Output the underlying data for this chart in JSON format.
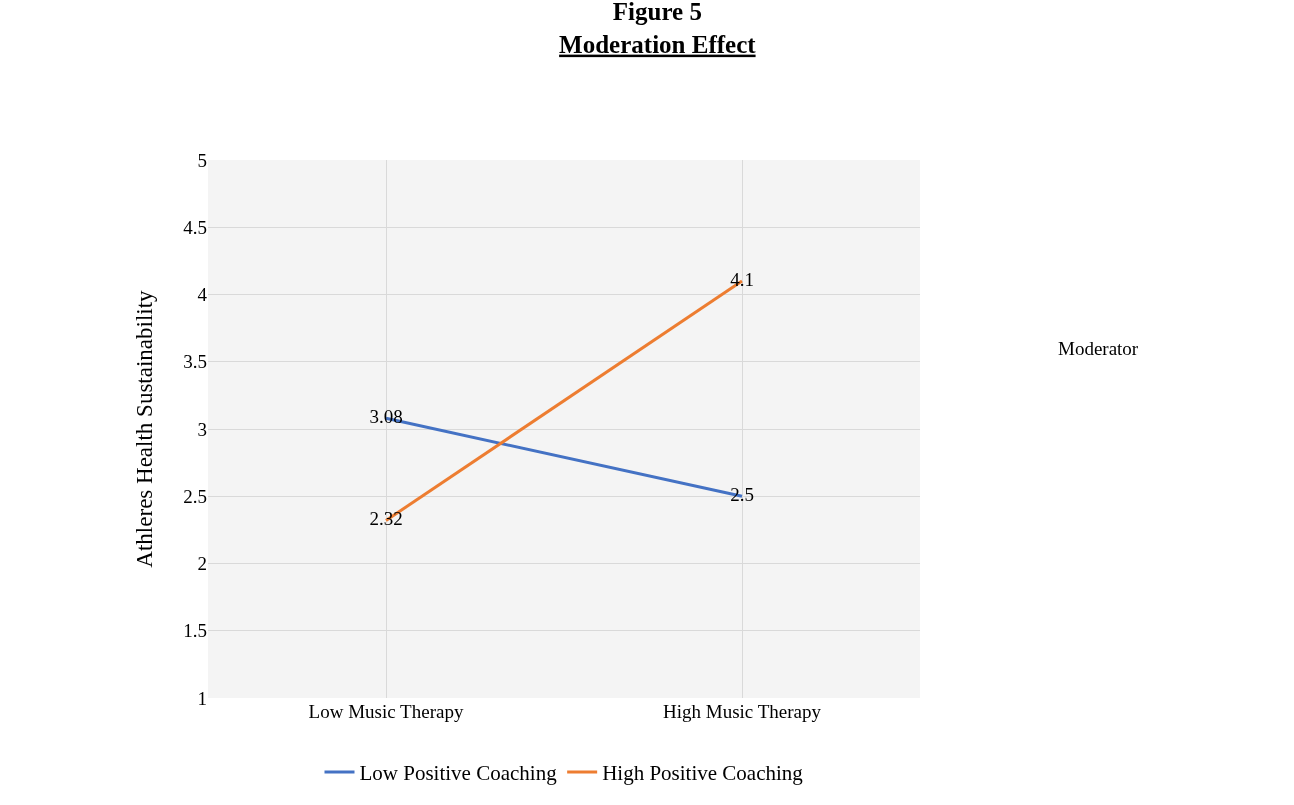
{
  "chart_data": {
    "type": "line",
    "title": "Figure 5",
    "subtitle": "Moderation Effect",
    "ylabel": "Athleres Health Sustainability",
    "categories": [
      "Low Music Therapy",
      "High Music Therapy"
    ],
    "series": [
      {
        "name": "Low Positive Coaching",
        "color": "#4472c4",
        "values": [
          3.08,
          2.5
        ]
      },
      {
        "name": "High Positive Coaching",
        "color": "#ed7d31",
        "values": [
          2.32,
          4.1
        ]
      }
    ],
    "ylim": [
      1,
      5
    ],
    "yticks": [
      1,
      1.5,
      2,
      2.5,
      3,
      3.5,
      4,
      4.5,
      5
    ],
    "grid": true,
    "legend": "bottom",
    "data_labels": true,
    "marker": "none",
    "line_style": "solid",
    "annotations": [
      "Moderator"
    ]
  }
}
